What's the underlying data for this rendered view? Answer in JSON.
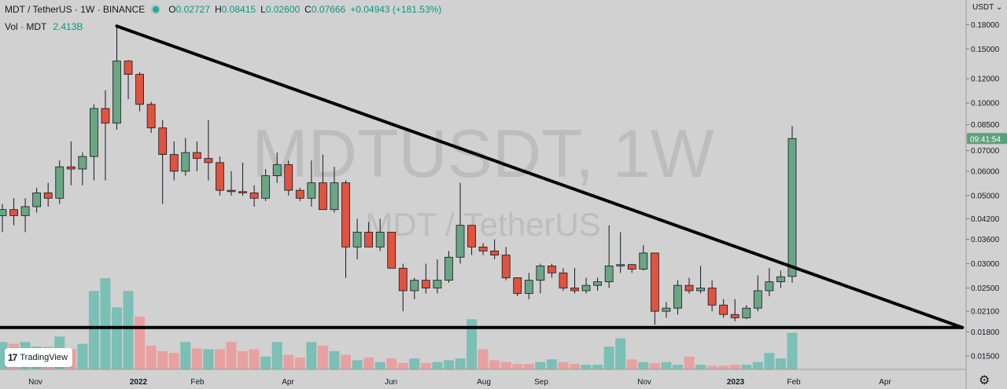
{
  "header": {
    "symbol": "MDT / TetherUS · 1W · BINANCE",
    "o_label": "O",
    "o_value": "0.02727",
    "h_label": "H",
    "h_value": "0.08415",
    "l_label": "L",
    "l_value": "0.02600",
    "c_label": "C",
    "c_value": "0.07666",
    "change": "+0.04943 (+181.53%)"
  },
  "volume": {
    "label": "Vol · MDT",
    "value": "2.413B"
  },
  "currency_menu": "USDT ⌄",
  "watermark": {
    "line1": "MDTUSDT, 1W",
    "line2": "MDT / TetherUS"
  },
  "price_label": "09:41:54",
  "logo_text": "TradingView",
  "colors": {
    "up": "#6aa584",
    "down": "#e0533f",
    "vol_up": "#7bbfb6",
    "vol_down": "#e9a0a0",
    "price_tag": "#5da07c",
    "background": "#d1d1d1"
  },
  "chart_data": {
    "type": "candlestick",
    "yscale": "log",
    "ylim": [
      0.0145,
      0.197
    ],
    "y_ticks": [
      "0.18000",
      "0.15000",
      "0.12000",
      "0.10000",
      "0.08500",
      "0.07000",
      "0.06000",
      "0.05000",
      "0.04200",
      "0.03600",
      "0.03000",
      "0.02500",
      "0.02100",
      "0.01800",
      "0.01500"
    ],
    "x_ticks": [
      "Nov",
      "2022",
      "Feb",
      "Apr",
      "Jun",
      "Aug",
      "Sep",
      "Nov",
      "2023",
      "Feb",
      "Apr"
    ],
    "candles": [
      {
        "o": 0.043,
        "h": 0.047,
        "l": 0.038,
        "c": 0.045
      },
      {
        "o": 0.045,
        "h": 0.049,
        "l": 0.04,
        "c": 0.043
      },
      {
        "o": 0.043,
        "h": 0.049,
        "l": 0.038,
        "c": 0.046
      },
      {
        "o": 0.046,
        "h": 0.053,
        "l": 0.044,
        "c": 0.051
      },
      {
        "o": 0.051,
        "h": 0.055,
        "l": 0.046,
        "c": 0.049
      },
      {
        "o": 0.049,
        "h": 0.065,
        "l": 0.047,
        "c": 0.062
      },
      {
        "o": 0.062,
        "h": 0.075,
        "l": 0.054,
        "c": 0.061
      },
      {
        "o": 0.061,
        "h": 0.069,
        "l": 0.054,
        "c": 0.067
      },
      {
        "o": 0.067,
        "h": 0.099,
        "l": 0.056,
        "c": 0.096
      },
      {
        "o": 0.096,
        "h": 0.11,
        "l": 0.056,
        "c": 0.086
      },
      {
        "o": 0.086,
        "h": 0.179,
        "l": 0.082,
        "c": 0.137
      },
      {
        "o": 0.137,
        "h": 0.138,
        "l": 0.103,
        "c": 0.124
      },
      {
        "o": 0.124,
        "h": 0.126,
        "l": 0.094,
        "c": 0.099
      },
      {
        "o": 0.099,
        "h": 0.101,
        "l": 0.08,
        "c": 0.083
      },
      {
        "o": 0.083,
        "h": 0.088,
        "l": 0.047,
        "c": 0.068
      },
      {
        "o": 0.068,
        "h": 0.075,
        "l": 0.056,
        "c": 0.06
      },
      {
        "o": 0.06,
        "h": 0.077,
        "l": 0.058,
        "c": 0.069
      },
      {
        "o": 0.069,
        "h": 0.075,
        "l": 0.06,
        "c": 0.066
      },
      {
        "o": 0.066,
        "h": 0.088,
        "l": 0.056,
        "c": 0.064
      },
      {
        "o": 0.064,
        "h": 0.067,
        "l": 0.05,
        "c": 0.052
      },
      {
        "o": 0.052,
        "h": 0.06,
        "l": 0.05,
        "c": 0.0515
      },
      {
        "o": 0.0515,
        "h": 0.064,
        "l": 0.05,
        "c": 0.051
      },
      {
        "o": 0.051,
        "h": 0.054,
        "l": 0.046,
        "c": 0.049
      },
      {
        "o": 0.049,
        "h": 0.061,
        "l": 0.048,
        "c": 0.058
      },
      {
        "o": 0.058,
        "h": 0.069,
        "l": 0.055,
        "c": 0.063
      },
      {
        "o": 0.063,
        "h": 0.065,
        "l": 0.05,
        "c": 0.052
      },
      {
        "o": 0.052,
        "h": 0.053,
        "l": 0.048,
        "c": 0.049
      },
      {
        "o": 0.049,
        "h": 0.065,
        "l": 0.046,
        "c": 0.055
      },
      {
        "o": 0.055,
        "h": 0.068,
        "l": 0.045,
        "c": 0.045
      },
      {
        "o": 0.045,
        "h": 0.062,
        "l": 0.044,
        "c": 0.055
      },
      {
        "o": 0.055,
        "h": 0.056,
        "l": 0.027,
        "c": 0.034
      },
      {
        "o": 0.034,
        "h": 0.042,
        "l": 0.031,
        "c": 0.038
      },
      {
        "o": 0.038,
        "h": 0.041,
        "l": 0.034,
        "c": 0.034
      },
      {
        "o": 0.034,
        "h": 0.042,
        "l": 0.033,
        "c": 0.038
      },
      {
        "o": 0.038,
        "h": 0.038,
        "l": 0.029,
        "c": 0.029
      },
      {
        "o": 0.029,
        "h": 0.03,
        "l": 0.021,
        "c": 0.0245
      },
      {
        "o": 0.0245,
        "h": 0.027,
        "l": 0.023,
        "c": 0.0265
      },
      {
        "o": 0.0265,
        "h": 0.03,
        "l": 0.024,
        "c": 0.025
      },
      {
        "o": 0.025,
        "h": 0.031,
        "l": 0.024,
        "c": 0.0265
      },
      {
        "o": 0.0265,
        "h": 0.033,
        "l": 0.026,
        "c": 0.0315
      },
      {
        "o": 0.0315,
        "h": 0.055,
        "l": 0.03,
        "c": 0.04
      },
      {
        "o": 0.04,
        "h": 0.04,
        "l": 0.032,
        "c": 0.034
      },
      {
        "o": 0.034,
        "h": 0.035,
        "l": 0.032,
        "c": 0.033
      },
      {
        "o": 0.033,
        "h": 0.036,
        "l": 0.031,
        "c": 0.032
      },
      {
        "o": 0.032,
        "h": 0.034,
        "l": 0.0265,
        "c": 0.027
      },
      {
        "o": 0.027,
        "h": 0.027,
        "l": 0.0235,
        "c": 0.024
      },
      {
        "o": 0.024,
        "h": 0.028,
        "l": 0.023,
        "c": 0.0265
      },
      {
        "o": 0.0265,
        "h": 0.03,
        "l": 0.024,
        "c": 0.0295
      },
      {
        "o": 0.0295,
        "h": 0.03,
        "l": 0.027,
        "c": 0.028
      },
      {
        "o": 0.028,
        "h": 0.029,
        "l": 0.0245,
        "c": 0.025
      },
      {
        "o": 0.025,
        "h": 0.029,
        "l": 0.024,
        "c": 0.0245
      },
      {
        "o": 0.0245,
        "h": 0.027,
        "l": 0.024,
        "c": 0.0255
      },
      {
        "o": 0.0255,
        "h": 0.027,
        "l": 0.0245,
        "c": 0.0262
      },
      {
        "o": 0.0262,
        "h": 0.04,
        "l": 0.025,
        "c": 0.0295
      },
      {
        "o": 0.0295,
        "h": 0.038,
        "l": 0.028,
        "c": 0.0298
      },
      {
        "o": 0.0298,
        "h": 0.03,
        "l": 0.028,
        "c": 0.0288
      },
      {
        "o": 0.0288,
        "h": 0.0345,
        "l": 0.0285,
        "c": 0.0325
      },
      {
        "o": 0.0325,
        "h": 0.0325,
        "l": 0.019,
        "c": 0.021
      },
      {
        "o": 0.021,
        "h": 0.0225,
        "l": 0.02,
        "c": 0.0215
      },
      {
        "o": 0.0215,
        "h": 0.0265,
        "l": 0.0205,
        "c": 0.0255
      },
      {
        "o": 0.0255,
        "h": 0.027,
        "l": 0.024,
        "c": 0.0245
      },
      {
        "o": 0.0245,
        "h": 0.0295,
        "l": 0.024,
        "c": 0.025
      },
      {
        "o": 0.025,
        "h": 0.0265,
        "l": 0.021,
        "c": 0.022
      },
      {
        "o": 0.022,
        "h": 0.023,
        "l": 0.02,
        "c": 0.0205
      },
      {
        "o": 0.0205,
        "h": 0.023,
        "l": 0.0195,
        "c": 0.02
      },
      {
        "o": 0.02,
        "h": 0.022,
        "l": 0.0198,
        "c": 0.0215
      },
      {
        "o": 0.0215,
        "h": 0.0275,
        "l": 0.021,
        "c": 0.0245
      },
      {
        "o": 0.0245,
        "h": 0.029,
        "l": 0.0235,
        "c": 0.0262
      },
      {
        "o": 0.0262,
        "h": 0.0285,
        "l": 0.025,
        "c": 0.0272
      },
      {
        "o": 0.02727,
        "h": 0.08415,
        "l": 0.026,
        "c": 0.07666
      }
    ],
    "volume_relative": [
      0.3,
      0.28,
      0.3,
      0.25,
      0.25,
      0.36,
      0.22,
      0.28,
      0.86,
      1.0,
      0.68,
      0.86,
      0.58,
      0.26,
      0.2,
      0.18,
      0.3,
      0.23,
      0.22,
      0.22,
      0.3,
      0.2,
      0.22,
      0.14,
      0.3,
      0.16,
      0.13,
      0.3,
      0.26,
      0.2,
      0.16,
      0.1,
      0.13,
      0.08,
      0.12,
      0.07,
      0.12,
      0.07,
      0.08,
      0.1,
      0.12,
      0.55,
      0.22,
      0.1,
      0.08,
      0.06,
      0.06,
      0.08,
      0.11,
      0.08,
      0.06,
      0.05,
      0.05,
      0.25,
      0.34,
      0.11,
      0.08,
      0.07,
      0.08,
      0.05,
      0.14,
      0.05,
      0.04,
      0.04,
      0.05,
      0.05,
      0.08,
      0.18,
      0.12,
      0.4
    ],
    "volume_colors": [
      "up",
      "down",
      "up",
      "up",
      "down",
      "up",
      "down",
      "up",
      "up",
      "up",
      "up",
      "up",
      "down",
      "down",
      "down",
      "down",
      "up",
      "down",
      "up",
      "down",
      "down",
      "down",
      "down",
      "up",
      "up",
      "down",
      "down",
      "up",
      "down",
      "up",
      "down",
      "up",
      "down",
      "up",
      "down",
      "down",
      "up",
      "down",
      "up",
      "up",
      "up",
      "up",
      "down",
      "down",
      "down",
      "down",
      "down",
      "up",
      "up",
      "down",
      "down",
      "up",
      "up",
      "up",
      "up",
      "down",
      "up",
      "down",
      "up",
      "up",
      "down",
      "up",
      "down",
      "down",
      "down",
      "up",
      "up",
      "up",
      "up",
      "up"
    ],
    "trendlines": [
      {
        "from": {
          "bar": 10,
          "price": 0.178
        },
        "to": {
          "bar": 84,
          "price": 0.0186
        }
      },
      {
        "from": {
          "bar": -1,
          "price": 0.0186
        },
        "to": {
          "bar": 84,
          "price": 0.0186
        }
      }
    ],
    "last_price": 0.07666
  }
}
